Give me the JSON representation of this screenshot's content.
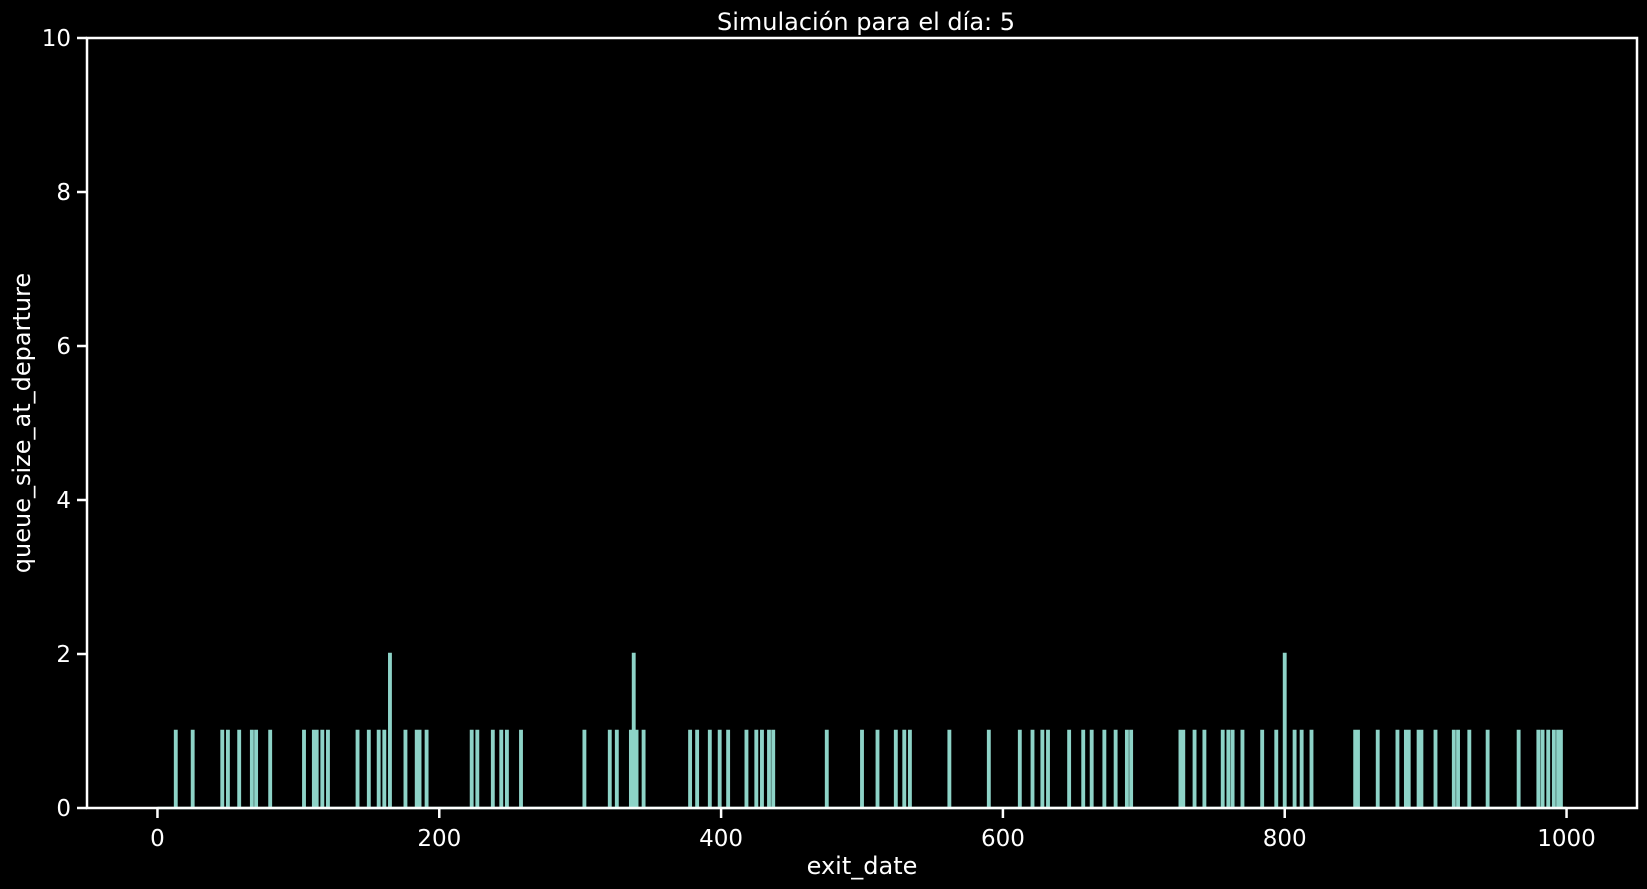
{
  "chart_data": {
    "type": "line",
    "title": "Simulación para el día: 5",
    "xlabel": "exit_date",
    "ylabel": "queue_size_at_departure",
    "xlim": [
      -50,
      1050
    ],
    "ylim": [
      0,
      10
    ],
    "xticks": [
      "0",
      "200",
      "400",
      "600",
      "800",
      "1000"
    ],
    "yticks": [
      "0",
      "2",
      "4",
      "6",
      "8",
      "10"
    ],
    "grid": false,
    "legend": "none",
    "series_color": "#8dd3c7",
    "background": "#000000",
    "foreground": "#ffffff",
    "x_range_data": [
      0,
      1000
    ],
    "spikes": [
      {
        "x": 13,
        "y": 1
      },
      {
        "x": 25,
        "y": 1
      },
      {
        "x": 46,
        "y": 1
      },
      {
        "x": 50,
        "y": 1
      },
      {
        "x": 58,
        "y": 1
      },
      {
        "x": 67,
        "y": 1
      },
      {
        "x": 70,
        "y": 1
      },
      {
        "x": 80,
        "y": 1
      },
      {
        "x": 104,
        "y": 1
      },
      {
        "x": 111,
        "y": 1
      },
      {
        "x": 113,
        "y": 1
      },
      {
        "x": 117,
        "y": 1
      },
      {
        "x": 121,
        "y": 1
      },
      {
        "x": 142,
        "y": 1
      },
      {
        "x": 150,
        "y": 1
      },
      {
        "x": 157,
        "y": 1
      },
      {
        "x": 161,
        "y": 1
      },
      {
        "x": 165,
        "y": 2
      },
      {
        "x": 176,
        "y": 1
      },
      {
        "x": 184,
        "y": 1
      },
      {
        "x": 186,
        "y": 1
      },
      {
        "x": 191,
        "y": 1
      },
      {
        "x": 223,
        "y": 1
      },
      {
        "x": 227,
        "y": 1
      },
      {
        "x": 238,
        "y": 1
      },
      {
        "x": 244,
        "y": 1
      },
      {
        "x": 248,
        "y": 1
      },
      {
        "x": 258,
        "y": 1
      },
      {
        "x": 303,
        "y": 1
      },
      {
        "x": 321,
        "y": 1
      },
      {
        "x": 326,
        "y": 1
      },
      {
        "x": 336,
        "y": 1
      },
      {
        "x": 338,
        "y": 2
      },
      {
        "x": 340,
        "y": 1
      },
      {
        "x": 345,
        "y": 1
      },
      {
        "x": 378,
        "y": 1
      },
      {
        "x": 383,
        "y": 1
      },
      {
        "x": 392,
        "y": 1
      },
      {
        "x": 399,
        "y": 1
      },
      {
        "x": 405,
        "y": 1
      },
      {
        "x": 418,
        "y": 1
      },
      {
        "x": 425,
        "y": 1
      },
      {
        "x": 429,
        "y": 1
      },
      {
        "x": 434,
        "y": 1
      },
      {
        "x": 437,
        "y": 1
      },
      {
        "x": 475,
        "y": 1
      },
      {
        "x": 500,
        "y": 1
      },
      {
        "x": 511,
        "y": 1
      },
      {
        "x": 524,
        "y": 1
      },
      {
        "x": 530,
        "y": 1
      },
      {
        "x": 534,
        "y": 1
      },
      {
        "x": 562,
        "y": 1
      },
      {
        "x": 590,
        "y": 1
      },
      {
        "x": 612,
        "y": 1
      },
      {
        "x": 621,
        "y": 1
      },
      {
        "x": 628,
        "y": 1
      },
      {
        "x": 632,
        "y": 1
      },
      {
        "x": 647,
        "y": 1
      },
      {
        "x": 657,
        "y": 1
      },
      {
        "x": 663,
        "y": 1
      },
      {
        "x": 672,
        "y": 1
      },
      {
        "x": 680,
        "y": 1
      },
      {
        "x": 688,
        "y": 1
      },
      {
        "x": 691,
        "y": 1
      },
      {
        "x": 726,
        "y": 1
      },
      {
        "x": 728,
        "y": 1
      },
      {
        "x": 736,
        "y": 1
      },
      {
        "x": 743,
        "y": 1
      },
      {
        "x": 756,
        "y": 1
      },
      {
        "x": 760,
        "y": 1
      },
      {
        "x": 763,
        "y": 1
      },
      {
        "x": 770,
        "y": 1
      },
      {
        "x": 784,
        "y": 1
      },
      {
        "x": 794,
        "y": 1
      },
      {
        "x": 800,
        "y": 2
      },
      {
        "x": 807,
        "y": 1
      },
      {
        "x": 812,
        "y": 1
      },
      {
        "x": 819,
        "y": 1
      },
      {
        "x": 850,
        "y": 1
      },
      {
        "x": 852,
        "y": 1
      },
      {
        "x": 866,
        "y": 1
      },
      {
        "x": 880,
        "y": 1
      },
      {
        "x": 886,
        "y": 1
      },
      {
        "x": 888,
        "y": 1
      },
      {
        "x": 895,
        "y": 1
      },
      {
        "x": 897,
        "y": 1
      },
      {
        "x": 907,
        "y": 1
      },
      {
        "x": 920,
        "y": 1
      },
      {
        "x": 923,
        "y": 1
      },
      {
        "x": 931,
        "y": 1
      },
      {
        "x": 944,
        "y": 1
      },
      {
        "x": 966,
        "y": 1
      },
      {
        "x": 980,
        "y": 1
      },
      {
        "x": 983,
        "y": 1
      },
      {
        "x": 987,
        "y": 1
      },
      {
        "x": 991,
        "y": 1
      },
      {
        "x": 994,
        "y": 1
      },
      {
        "x": 996,
        "y": 1
      }
    ]
  }
}
